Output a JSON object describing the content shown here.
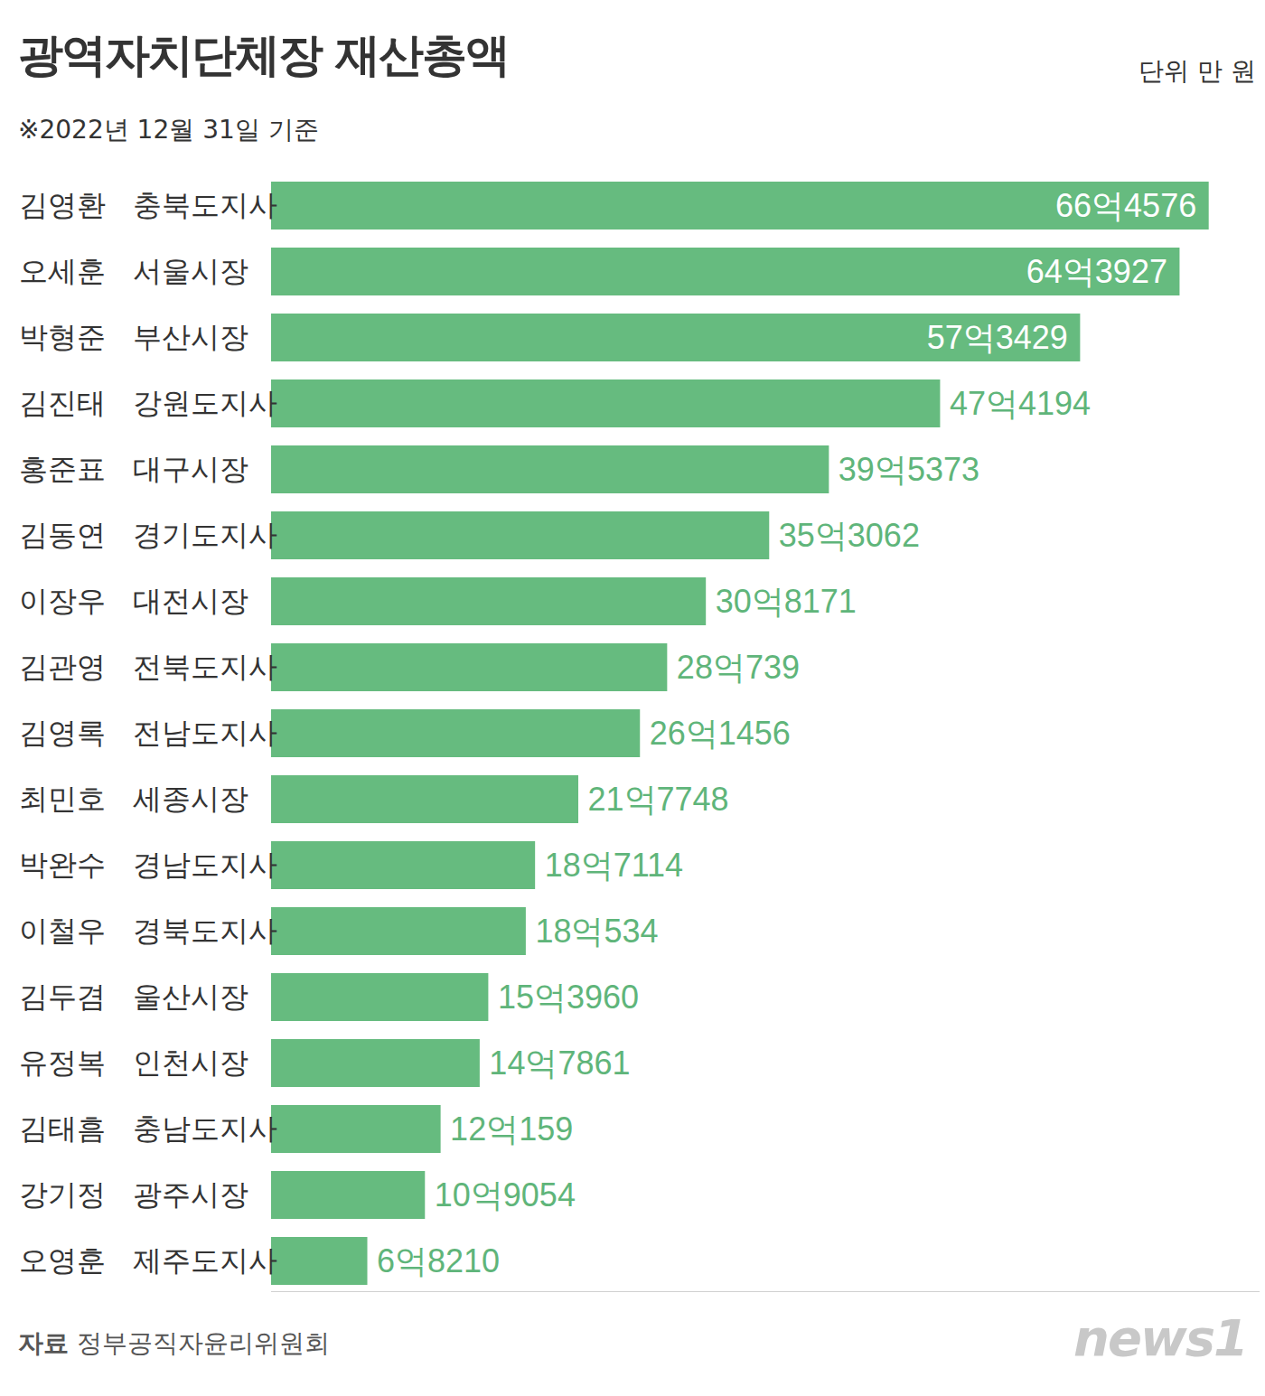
{
  "chart_data": {
    "type": "bar",
    "orientation": "horizontal",
    "title": "광역자치단체장 재산총액",
    "subtitle": "※2022년 12월 31일 기준",
    "unit_label": "단위 만 원",
    "source_label": "자료",
    "source": "정부공직자윤리위원회",
    "logo": "news1",
    "categories": [
      "김영환   충북도지사",
      "오세훈   서울시장",
      "박형준   부산시장",
      "김진태   강원도지사",
      "홍준표   대구시장",
      "김동연   경기도지사",
      "이장우   대전시장",
      "김관영   전북도지사",
      "김영록   전남도지사",
      "최민호   세종시장",
      "박완수   경남도지사",
      "이철우   경북도지사",
      "김두겸   울산시장",
      "유정복   인천시장",
      "김태흠   충남도지사",
      "강기정   광주시장",
      "오영훈   제주도지사"
    ],
    "values": [
      664576,
      643927,
      573429,
      474194,
      395373,
      353062,
      308171,
      280739,
      261456,
      217748,
      187114,
      180534,
      153960,
      147861,
      120159,
      109054,
      68210
    ],
    "value_labels": [
      "66억4576",
      "64억3927",
      "57억3429",
      "47억4194",
      "39억5373",
      "35억3062",
      "30억8171",
      "28억739",
      "26억1456",
      "21억7748",
      "18억7114",
      "18억534",
      "15억3960",
      "14억7861",
      "12억159",
      "10억9054",
      "6억8210"
    ],
    "color": "#66bb7f",
    "data_labels": true,
    "xlim": [
      0,
      700000
    ],
    "xticks": [],
    "grid": false,
    "tick_labels": "y"
  }
}
